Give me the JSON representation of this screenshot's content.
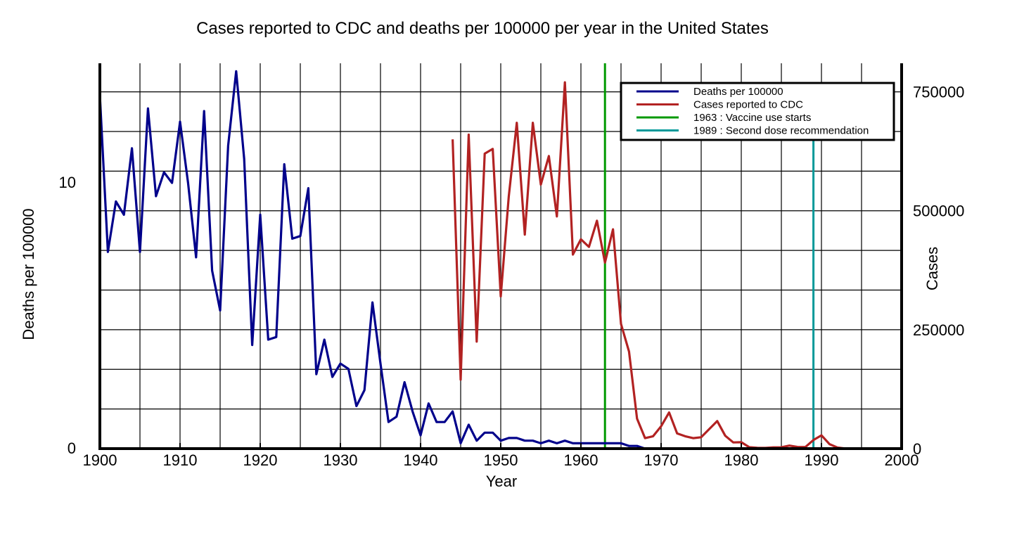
{
  "chart_data": {
    "type": "line",
    "title": "Cases reported to CDC and deaths per 100000 per year in the United States",
    "xlabel": "Year",
    "ylabel_left": "Deaths per 100000",
    "ylabel_right": "Cases",
    "xlim": [
      1900,
      2000
    ],
    "ylim_left": [
      0,
      14.5
    ],
    "ylim_right": [
      0,
      810000
    ],
    "x_ticks": [
      1900,
      1910,
      1920,
      1930,
      1940,
      1950,
      1960,
      1970,
      1980,
      1990,
      2000
    ],
    "y_ticks_left": [
      0,
      10
    ],
    "y_ticks_right": [
      0,
      250000,
      500000,
      750000
    ],
    "y_ticks_right_labels": [
      "0",
      "250000",
      "500000",
      "750000"
    ],
    "grid": true,
    "legend_position": "top-right",
    "series": [
      {
        "name": "Deaths per 100000",
        "axis": "left",
        "color": "#00008B",
        "x": [
          1900,
          1901,
          1902,
          1903,
          1904,
          1905,
          1906,
          1907,
          1908,
          1909,
          1910,
          1911,
          1912,
          1913,
          1914,
          1915,
          1916,
          1917,
          1918,
          1919,
          1920,
          1921,
          1922,
          1923,
          1924,
          1925,
          1926,
          1927,
          1928,
          1929,
          1930,
          1931,
          1932,
          1933,
          1934,
          1935,
          1936,
          1937,
          1938,
          1939,
          1940,
          1941,
          1942,
          1943,
          1944,
          1945,
          1946,
          1947,
          1948,
          1949,
          1950,
          1951,
          1952,
          1953,
          1954,
          1955,
          1956,
          1957,
          1958,
          1959,
          1960,
          1961,
          1962,
          1963,
          1964,
          1965,
          1966,
          1967,
          1968,
          1969,
          1970
        ],
        "values": [
          13.3,
          7.4,
          9.3,
          8.8,
          11.3,
          7.4,
          12.8,
          9.5,
          10.4,
          10.0,
          12.3,
          10.0,
          7.2,
          12.7,
          6.7,
          5.2,
          11.4,
          14.2,
          10.9,
          3.9,
          8.8,
          4.1,
          4.2,
          10.7,
          7.9,
          8.0,
          9.8,
          2.8,
          4.1,
          2.7,
          3.2,
          3.0,
          1.6,
          2.2,
          5.5,
          3.2,
          1.0,
          1.2,
          2.5,
          1.4,
          0.5,
          1.7,
          1.0,
          1.0,
          1.4,
          0.2,
          0.9,
          0.3,
          0.6,
          0.6,
          0.3,
          0.4,
          0.4,
          0.3,
          0.3,
          0.2,
          0.3,
          0.2,
          0.3,
          0.2,
          0.2,
          0.2,
          0.2,
          0.2,
          0.2,
          0.2,
          0.1,
          0.1,
          0.0,
          0.0,
          0.0
        ]
      },
      {
        "name": "Cases reported to CDC",
        "axis": "right",
        "color": "#B22222",
        "x": [
          1944,
          1945,
          1946,
          1947,
          1948,
          1949,
          1950,
          1951,
          1952,
          1953,
          1954,
          1955,
          1956,
          1957,
          1958,
          1959,
          1960,
          1961,
          1962,
          1963,
          1964,
          1965,
          1966,
          1967,
          1968,
          1969,
          1970,
          1971,
          1972,
          1973,
          1974,
          1975,
          1976,
          1977,
          1978,
          1979,
          1980,
          1981,
          1982,
          1983,
          1984,
          1985,
          1986,
          1987,
          1988,
          1989,
          1990,
          1991,
          1992,
          1993
        ],
        "values": [
          650000,
          145000,
          660000,
          225000,
          620000,
          630000,
          320000,
          530000,
          685000,
          450000,
          685000,
          555000,
          615000,
          488000,
          770000,
          408000,
          440000,
          424000,
          479000,
          391000,
          461000,
          262000,
          204000,
          63000,
          22000,
          26000,
          47000,
          76000,
          32000,
          26000,
          22000,
          24000,
          41000,
          58000,
          27000,
          13000,
          13500,
          3000,
          1700,
          1500,
          2600,
          2800,
          6300,
          3600,
          3400,
          18000,
          28000,
          9500,
          2200,
          300
        ]
      }
    ],
    "vertical_lines": [
      {
        "name": "1963 : Vaccine use starts",
        "x": 1963,
        "color": "#009900"
      },
      {
        "name": "1989 : Second dose recommendation",
        "x": 1989,
        "color": "#009999"
      }
    ]
  }
}
